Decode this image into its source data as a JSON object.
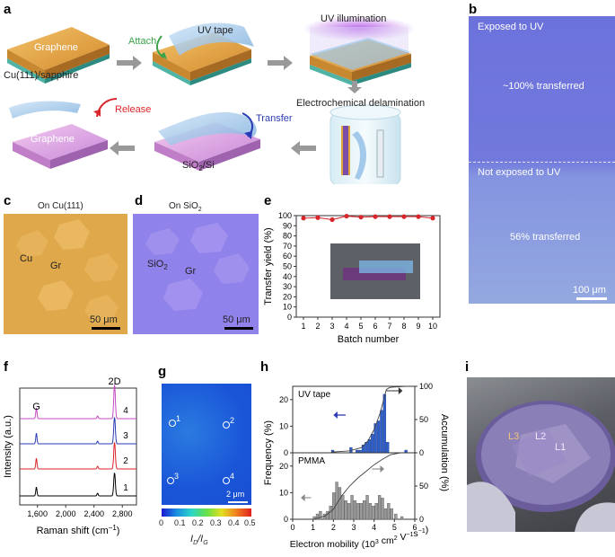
{
  "panels": {
    "a": {
      "label": "a",
      "graphene_top": "Graphene",
      "substrate": "Cu(111)/sapphire",
      "attach": "Attach",
      "uv_tape": "UV tape",
      "uv_illumination": "UV illumination",
      "electrochemical": "Electrochemical delamination",
      "release": "Release",
      "transfer": "Transfer",
      "graphene_bottom": "Graphene",
      "sio2_si_a": "SiO",
      "sio2_si_sub": "2",
      "sio2_si_b": "/Si"
    },
    "b": {
      "label": "b",
      "exposed": "Exposed to UV",
      "exposed_pct": "~100% transferred",
      "not_exposed": "Not exposed to  UV",
      "not_exposed_pct": "56% transferred",
      "scale": "100 μm"
    },
    "c": {
      "label": "c",
      "title": "On Cu(111)",
      "cu": "Cu",
      "gr": "Gr",
      "scale": "50 μm"
    },
    "d": {
      "label": "d",
      "title_a": "On SiO",
      "title_sub": "2",
      "sio2_a": "SiO",
      "sio2_sub": "2",
      "gr": "Gr",
      "scale": "50 μm"
    },
    "e": {
      "label": "e"
    },
    "f": {
      "label": "f"
    },
    "g": {
      "label": "g",
      "points": [
        "1",
        "2",
        "3",
        "4"
      ],
      "scale": "2 μm",
      "colorbar_ticks": [
        "0",
        "0.1",
        "0.2",
        "0.3",
        "0.4",
        "0.5"
      ],
      "axis_label_a": "I",
      "axis_label_sub1": "D",
      "axis_label_b": "/I",
      "axis_label_sub2": "G"
    },
    "h": {
      "label": "h"
    },
    "i": {
      "label": "i",
      "l3": "L3",
      "l2": "L2",
      "l1": "L1"
    }
  },
  "colors": {
    "green": "#3aa34a",
    "red": "#d9262a",
    "blue": "#2a3bb5",
    "uv_blue": "#6f74d8",
    "cu_orange": "#d9a244",
    "sio2_purple": "#8a7be0",
    "bar_blue": "#2f5fc9",
    "bar_gray": "#9a9a9a"
  },
  "chart_data": [
    {
      "id": "e",
      "type": "line",
      "title": "",
      "xlabel": "Batch number",
      "ylabel": "Transfer yield (%)",
      "x": [
        1,
        2,
        3,
        4,
        5,
        6,
        7,
        8,
        9,
        10
      ],
      "values": [
        97.5,
        98,
        96,
        99.5,
        98.5,
        99,
        99,
        99,
        99,
        97.5
      ],
      "xticks": [
        "1",
        "2",
        "3",
        "4",
        "5",
        "6",
        "7",
        "8",
        "9",
        "10"
      ],
      "yticks": [
        "0",
        "10",
        "20",
        "30",
        "40",
        "50",
        "60",
        "70",
        "80",
        "90",
        "100"
      ],
      "xlim": [
        0.5,
        10.5
      ],
      "ylim": [
        0,
        100
      ]
    },
    {
      "id": "f",
      "type": "line",
      "title": "",
      "xlabel": "Raman shift (cm",
      "xlabel_sup": "−1",
      "xlabel_end": ")",
      "ylabel": "Intensity (a.u.)",
      "xticks": [
        "1,600",
        "2,000",
        "2,400",
        "2,800"
      ],
      "xtick_values": [
        1600,
        2000,
        2400,
        2800
      ],
      "xlim": [
        1350,
        3000
      ],
      "peaks": {
        "G": 1585,
        "2D": 2690
      },
      "peak_labels": [
        "G",
        "2D"
      ],
      "series": [
        {
          "name": "1",
          "color": "#000000"
        },
        {
          "name": "2",
          "color": "#d9262a"
        },
        {
          "name": "3",
          "color": "#2a3bb5"
        },
        {
          "name": "4",
          "color": "#c44bc4"
        }
      ]
    },
    {
      "id": "h_top",
      "type": "bar",
      "title": "UV tape",
      "xlim": [
        0,
        6
      ],
      "ylim": [
        0,
        25
      ],
      "yticks": [
        "0",
        "10",
        "20"
      ],
      "ytick_values": [
        0,
        10,
        20
      ],
      "bin_width": 0.15,
      "bins_start": [
        1.9,
        2.8,
        3.1,
        3.25,
        3.4,
        3.55,
        3.7,
        3.85,
        4.0,
        4.15,
        4.3,
        4.45,
        4.6,
        5.5
      ],
      "values": [
        1,
        2,
        1,
        1,
        3,
        4,
        5,
        7,
        11,
        12,
        16,
        22,
        4,
        1
      ],
      "accumulation_label_ticks": [
        "0",
        "50",
        "100"
      ],
      "accumulation_x": [
        1.9,
        2.8,
        3.4,
        3.7,
        4.0,
        4.3,
        4.6,
        4.75,
        5.0,
        5.6
      ],
      "accumulation_y": [
        1,
        3,
        8,
        18,
        35,
        60,
        95,
        98,
        99,
        100
      ]
    },
    {
      "id": "h_bottom",
      "type": "bar",
      "title": "PMMA",
      "xlabel": "Electron mobility (10",
      "xlabel_sup1": "3",
      "xlabel_mid": " cm",
      "xlabel_sup2": "2",
      "xlabel_mid2": " V",
      "xlabel_sup3": "−1",
      "xlabel_mid3": "s",
      "xlabel_sup4": "−1",
      "xlabel_end": ")",
      "shared_ylabel": "Frequency (%)",
      "shared_y2label": "Accumulation (%)",
      "xticks": [
        "0",
        "1",
        "2",
        "3",
        "4",
        "5",
        "6"
      ],
      "xtick_values": [
        0,
        1,
        2,
        3,
        4,
        5,
        6
      ],
      "xlim": [
        0,
        6
      ],
      "ylim": [
        0,
        25
      ],
      "yticks": [
        "0",
        "10",
        "20"
      ],
      "ytick_values": [
        0,
        10,
        20
      ],
      "bin_width": 0.15,
      "bins_start": [
        1.0,
        1.15,
        1.3,
        1.5,
        1.65,
        1.8,
        1.95,
        2.1,
        2.25,
        2.4,
        2.55,
        2.7,
        2.85,
        3.0,
        3.15,
        3.3,
        3.45,
        3.6,
        3.75,
        3.9,
        4.05,
        4.2,
        4.35,
        4.5,
        4.65,
        4.8,
        5.0,
        5.3
      ],
      "values": [
        1,
        2,
        3,
        2,
        3,
        5,
        10,
        14,
        12,
        9,
        7,
        6,
        9,
        7,
        6,
        6,
        7,
        9,
        6,
        5,
        6,
        9,
        8,
        4,
        6,
        4,
        2,
        1
      ],
      "accumulation_label_ticks": [
        "0",
        "50"
      ],
      "accumulation_x": [
        1.0,
        1.6,
        2.0,
        2.4,
        2.8,
        3.2,
        3.6,
        4.0,
        4.4,
        4.8,
        5.3
      ],
      "accumulation_y": [
        0,
        5,
        15,
        35,
        50,
        62,
        72,
        82,
        90,
        97,
        100
      ]
    }
  ]
}
